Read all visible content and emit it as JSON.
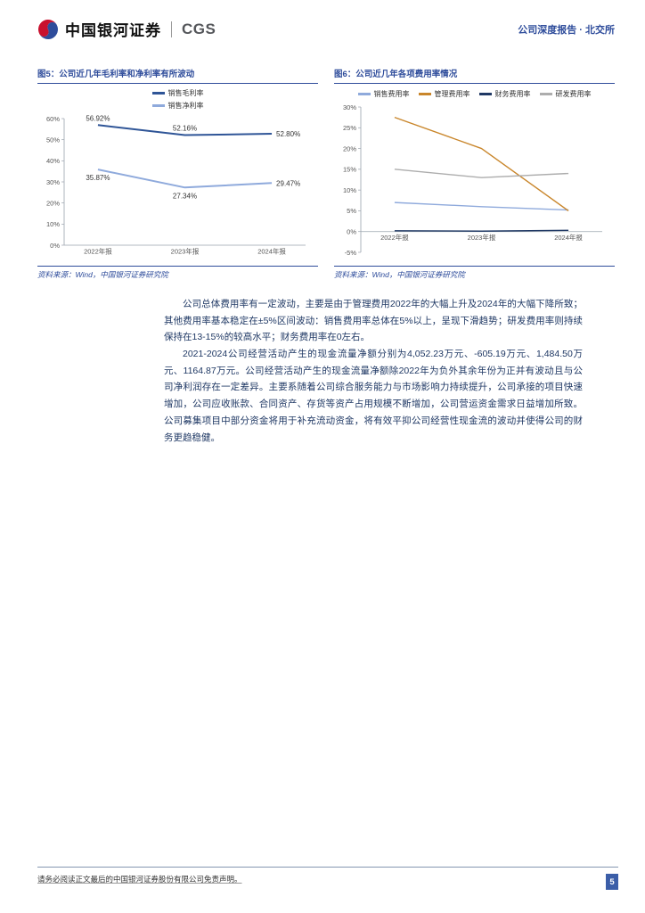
{
  "header": {
    "brand_cn": "中国银河证券",
    "brand_en": "CGS",
    "report_type": "公司深度报告 · 北交所"
  },
  "chart_data": [
    {
      "type": "line",
      "title": "图5：公司近几年毛利率和净利率有所波动",
      "categories": [
        "2022年报",
        "2023年报",
        "2024年报"
      ],
      "series": [
        {
          "name": "销售毛利率",
          "color": "#2F5597",
          "values": [
            56.92,
            52.16,
            52.8
          ],
          "labels": [
            "56.92%",
            "52.16%",
            "52.80%"
          ]
        },
        {
          "name": "销售净利率",
          "color": "#8FAADC",
          "values": [
            35.87,
            27.34,
            29.47
          ],
          "labels": [
            "35.87%",
            "27.34%",
            "29.47%"
          ]
        }
      ],
      "ylim": [
        0,
        60
      ],
      "ytick_step": 10,
      "line_width": 2,
      "grid": false,
      "legend_position": "top"
    },
    {
      "type": "line",
      "title": "图6：公司近几年各项费用率情况",
      "categories": [
        "2022年报",
        "2023年报",
        "2024年报"
      ],
      "series": [
        {
          "name": "销售费用率",
          "color": "#8FAADC",
          "values": [
            7.0,
            6.0,
            5.2
          ]
        },
        {
          "name": "管理费用率",
          "color": "#C9862B",
          "values": [
            27.5,
            20.0,
            5.0
          ]
        },
        {
          "name": "财务费用率",
          "color": "#1F3864",
          "values": [
            0.2,
            0.1,
            0.3
          ]
        },
        {
          "name": "研发费用率",
          "color": "#ADADAD",
          "values": [
            15.0,
            13.0,
            14.0
          ]
        }
      ],
      "ylim": [
        -5,
        30
      ],
      "ytick_step": 5,
      "line_width": 1.4,
      "grid": false,
      "legend_position": "top"
    }
  ],
  "figures": [
    {
      "source": "资料来源：Wind，中国银河证券研究院"
    },
    {
      "source": "资料来源：Wind，中国银河证券研究院"
    }
  ],
  "paragraphs": [
    "公司总体费用率有一定波动，主要是由于管理费用2022年的大幅上升及2024年的大幅下降所致；其他费用率基本稳定在±5%区间波动：销售费用率总体在5%以上，呈现下滑趋势；研发费用率则持续保持在13-15%的较高水平；财务费用率在0左右。",
    "2021-2024公司经营活动产生的现金流量净额分别为4,052.23万元、-605.19万元、1,484.50万元、1164.87万元。公司经营活动产生的现金流量净额除2022年为负外其余年份为正并有波动且与公司净利润存在一定差异。主要系随着公司综合服务能力与市场影响力持续提升，公司承接的项目快速增加，公司应收账款、合同资产、存货等资产占用规模不断增加，公司营运资金需求日益增加所致。公司募集项目中部分资金将用于补充流动资金，将有效平抑公司经营性现金流的波动并使得公司的财务更趋稳健。"
  ],
  "footer": {
    "disclaimer": "请务必阅读正文最后的中国银河证券股份有限公司免责声明。",
    "page_number": "5"
  }
}
